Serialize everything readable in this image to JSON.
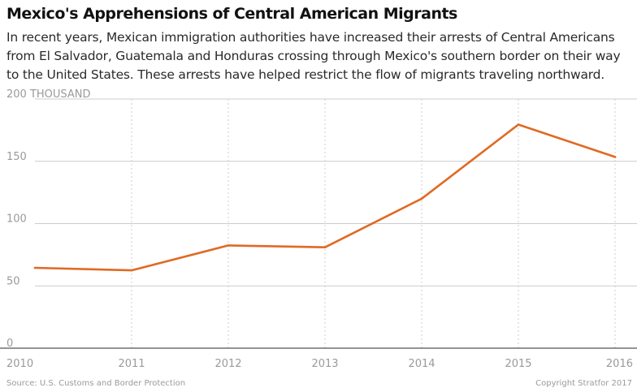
{
  "title": "Mexico's Apprehensions of Central American Migrants",
  "subtitle": "In recent years, Mexican immigration authorities have increased their arrests of Central Americans from El Salvador, Guatemala and Honduras crossing through Mexico's southern border on their way to the United States. These arrests have helped restrict the flow of migrants traveling northward.",
  "source": "Source: U.S. Customs and Border Protection",
  "copyright": "Copyright Stratfor 2017",
  "colors": {
    "line": "#e06a24",
    "grid": "#cccccc",
    "axis_text": "#9a9a9a",
    "baseline": "#555555"
  },
  "chart_data": {
    "type": "line",
    "x": [
      2010,
      2011,
      2012,
      2013,
      2014,
      2015,
      2016
    ],
    "series": [
      {
        "values": [
          64.5,
          62.5,
          82.5,
          81,
          120,
          179.5,
          153.5
        ]
      }
    ],
    "ylim": [
      0,
      200
    ],
    "yticks": [
      0,
      50,
      100,
      150,
      200
    ],
    "ytick_labels": [
      "0",
      "50",
      "100",
      "150",
      "200 THOUSAND"
    ],
    "xtick_labels": [
      "2010",
      "2011",
      "2012",
      "2013",
      "2014",
      "2015",
      "2016"
    ],
    "grid": true
  }
}
